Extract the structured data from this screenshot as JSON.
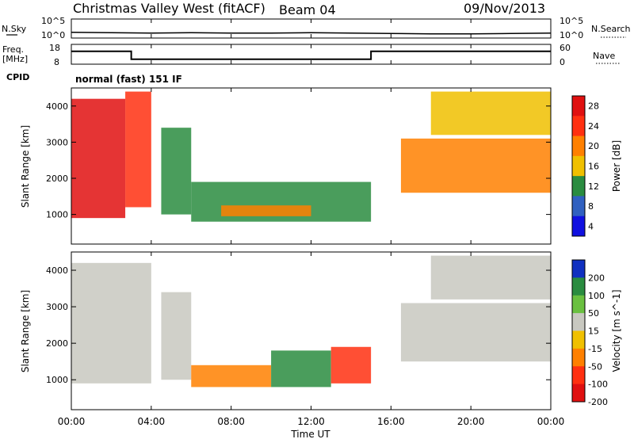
{
  "header": {
    "station": "Christmas Valley West (fitACF)",
    "beam": "Beam 04",
    "date": "09/Nov/2013"
  },
  "labels": {
    "nsky": "N.Sky",
    "nsearch": "N.Search",
    "freq_line1": "Freq.",
    "freq_line2": "[MHz]",
    "nave": "Nave",
    "cpid": "CPID",
    "cpid_value": "normal (fast) 151 IF"
  },
  "small_ticks": {
    "noise_left": [
      "10^5",
      "10^0"
    ],
    "noise_right": [
      "10^5",
      "10^0"
    ],
    "freq_left": [
      "18",
      "8"
    ],
    "freq_right": [
      "60",
      "0"
    ]
  },
  "chart_data": [
    {
      "type": "line",
      "title": "N.Sky / N.Search",
      "x": [
        "00:00",
        "02:00",
        "04:00",
        "06:00",
        "08:00",
        "10:00",
        "12:00",
        "14:00",
        "16:00",
        "18:00",
        "20:00",
        "22:00",
        "24:00"
      ],
      "series": [
        {
          "name": "N.Sky",
          "values": [
            1.5,
            1.4,
            1.3,
            1.4,
            1.3,
            1.3,
            1.4,
            1.3,
            1.2,
            1.1,
            1.1,
            1.2,
            1.3
          ]
        }
      ],
      "ylim": [
        0,
        5
      ]
    },
    {
      "type": "line",
      "title": "Freq. [MHz] / Nave",
      "x": [
        "00:00",
        "03:00",
        "03:00",
        "15:00",
        "15:00",
        "24:00"
      ],
      "series": [
        {
          "name": "Freq.",
          "values": [
            14.5,
            14.5,
            10.5,
            10.5,
            14.5,
            14.5
          ]
        }
      ],
      "ylim": [
        8,
        18
      ]
    },
    {
      "type": "heatmap",
      "title": "Power",
      "xlabel": "",
      "ylabel": "Slant Range [km]",
      "xlim": [
        0,
        24
      ],
      "ylim": [
        180,
        4500
      ],
      "yticks": [
        "1000",
        "2000",
        "3000",
        "4000"
      ],
      "colorbar": {
        "label": "Power [dB]",
        "ticks": [
          "28",
          "24",
          "20",
          "16",
          "12",
          "8",
          "4"
        ],
        "colors": [
          "#e01010",
          "#ff3010",
          "#ff8000",
          "#f0c000",
          "#2a8c40",
          "#3060c0",
          "#1010e0"
        ]
      },
      "regions": [
        {
          "t0": 0.0,
          "t1": 2.7,
          "r0": 900,
          "r1": 4200,
          "db": 28
        },
        {
          "t0": 2.7,
          "t1": 4.0,
          "r0": 1200,
          "r1": 4400,
          "db": 26
        },
        {
          "t0": 4.5,
          "t1": 6.0,
          "r0": 1000,
          "r1": 3400,
          "db": 14
        },
        {
          "t0": 6.0,
          "t1": 15.0,
          "r0": 800,
          "r1": 1900,
          "db": 12
        },
        {
          "t0": 7.5,
          "t1": 12.0,
          "r0": 950,
          "r1": 1250,
          "db": 20
        },
        {
          "t0": 16.5,
          "t1": 24.0,
          "r0": 1600,
          "r1": 3100,
          "db": 22
        },
        {
          "t0": 18.0,
          "t1": 24.0,
          "r0": 3200,
          "r1": 4400,
          "db": 18
        }
      ]
    },
    {
      "type": "heatmap",
      "title": "Velocity",
      "xlabel": "Time UT",
      "ylabel": "Slant Range [km]",
      "xlim": [
        0,
        24
      ],
      "ylim": [
        180,
        4500
      ],
      "xticks": [
        "00:00",
        "04:00",
        "08:00",
        "12:00",
        "16:00",
        "20:00",
        "00:00"
      ],
      "yticks": [
        "1000",
        "2000",
        "3000",
        "4000"
      ],
      "colorbar": {
        "label": "Velocity [m s^-1]",
        "ticks": [
          "200",
          "100",
          "50",
          "15",
          "-15",
          "-50",
          "-100",
          "-200"
        ],
        "colors": [
          "#1030c0",
          "#2a8c40",
          "#6ac040",
          "#c8c8c0",
          "#f0c000",
          "#ff8000",
          "#ff3010",
          "#e01010"
        ]
      },
      "regions": [
        {
          "t0": 0.0,
          "t1": 4.0,
          "r0": 900,
          "r1": 4200,
          "v": 0
        },
        {
          "t0": 4.5,
          "t1": 6.0,
          "r0": 1000,
          "r1": 3400,
          "v": 10
        },
        {
          "t0": 6.0,
          "t1": 10.0,
          "r0": 800,
          "r1": 1400,
          "v": -60
        },
        {
          "t0": 10.0,
          "t1": 13.0,
          "r0": 800,
          "r1": 1800,
          "v": 80
        },
        {
          "t0": 13.0,
          "t1": 15.0,
          "r0": 900,
          "r1": 1900,
          "v": -120
        },
        {
          "t0": 16.5,
          "t1": 24.0,
          "r0": 1500,
          "r1": 3100,
          "v": 0
        },
        {
          "t0": 18.0,
          "t1": 24.0,
          "r0": 3200,
          "r1": 4400,
          "v": 0
        }
      ]
    }
  ]
}
